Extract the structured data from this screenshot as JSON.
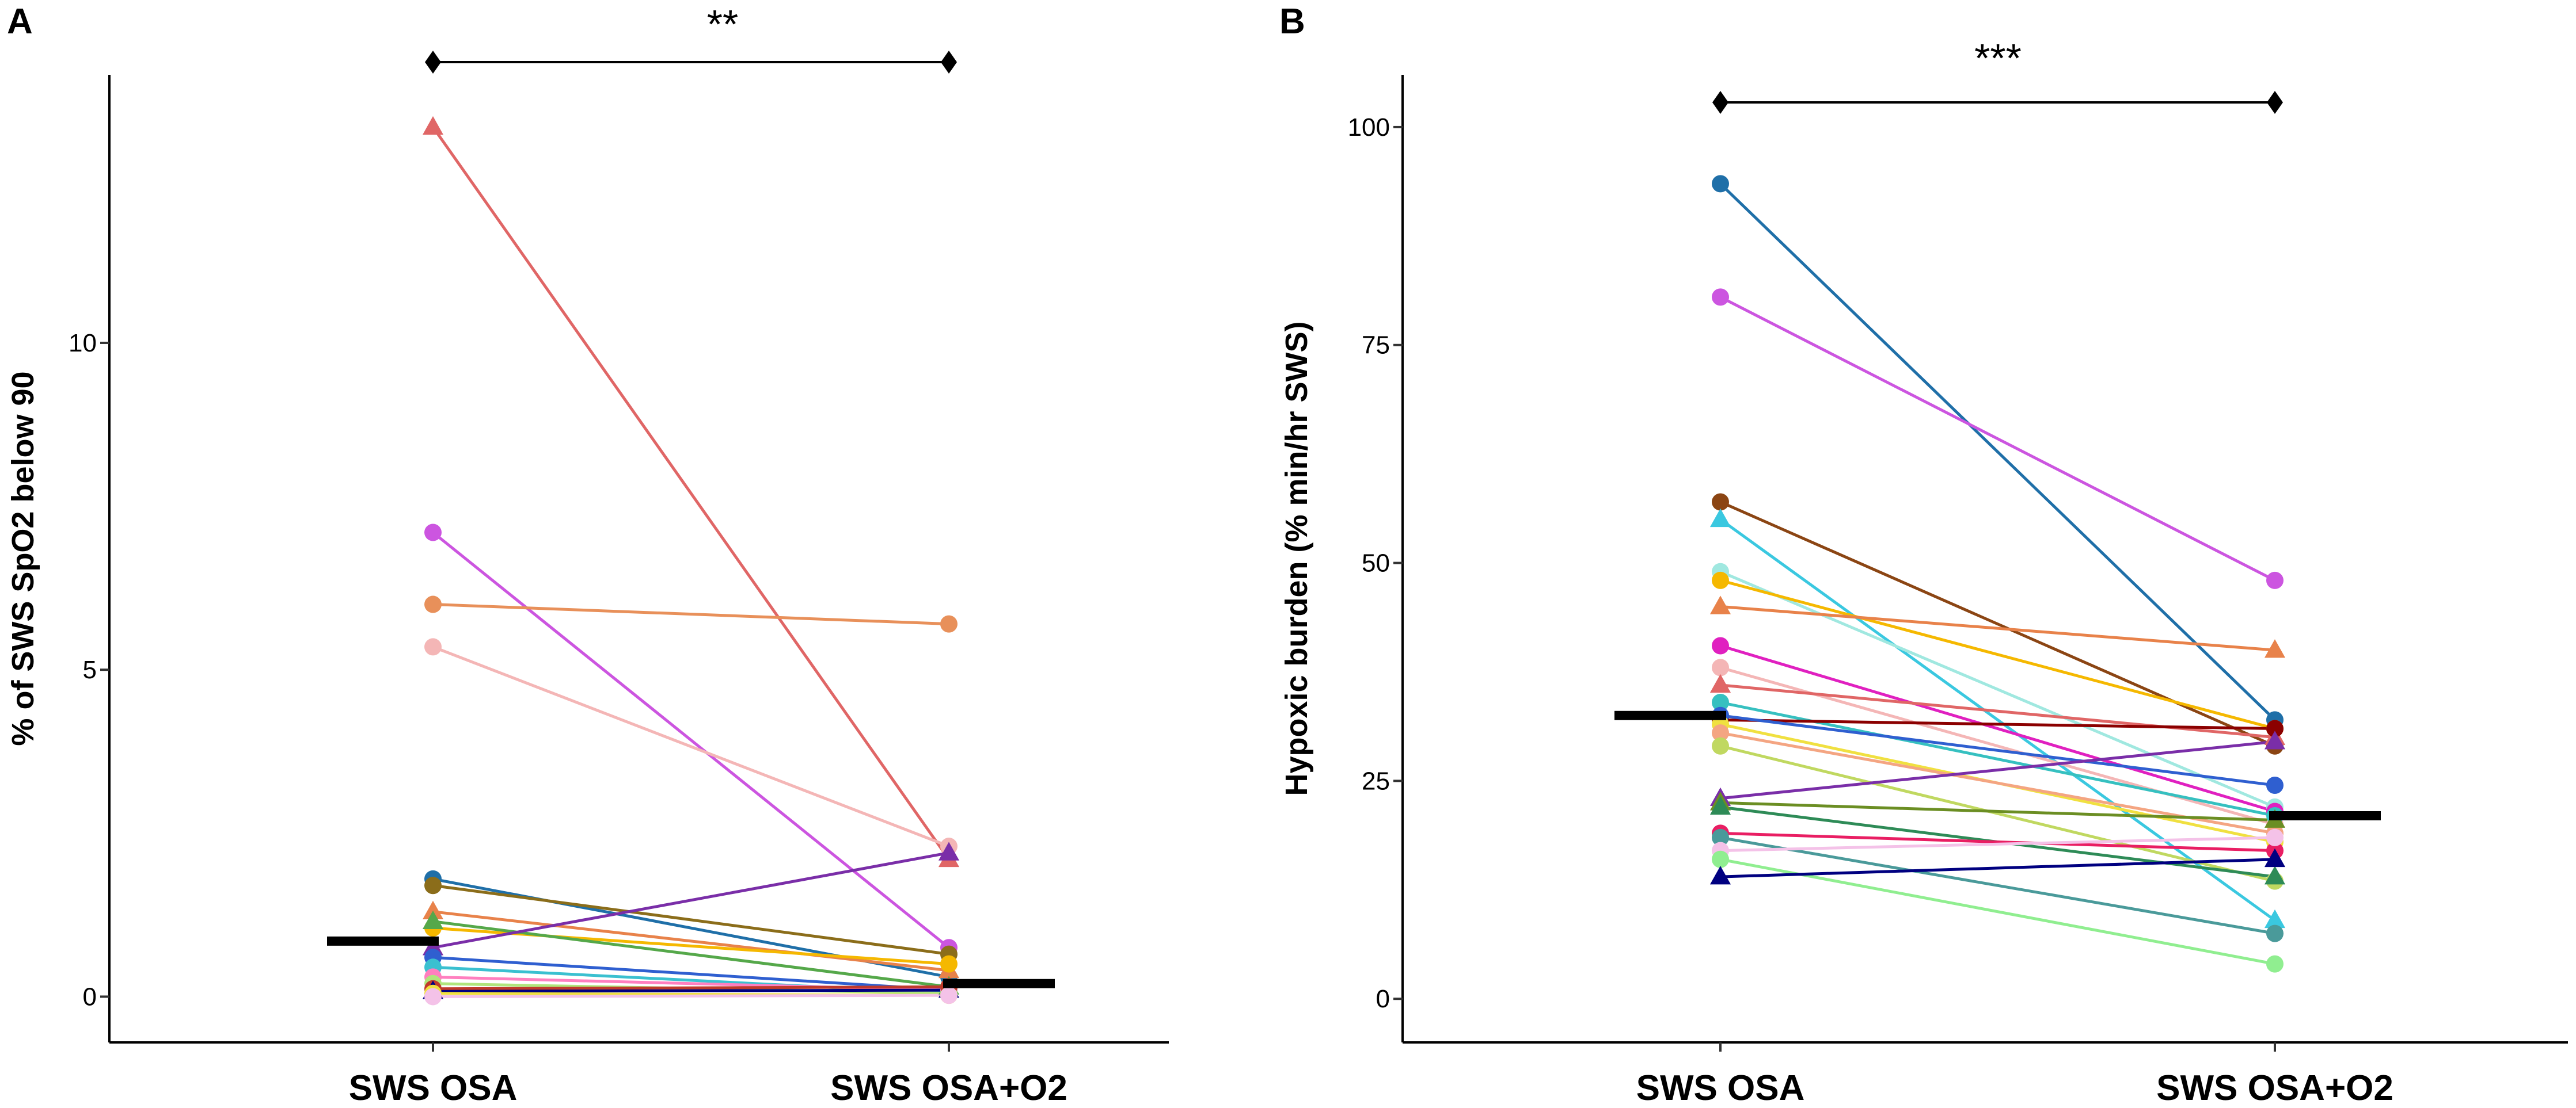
{
  "chart_data": [
    {
      "type": "line",
      "panel": "A",
      "title": "",
      "xlabel": "",
      "ylabel": "% of SWS SpO2 below 90",
      "categories": [
        "SWS OSA",
        "SWS OSA+O2"
      ],
      "ylim": [
        -0.7,
        14.1
      ],
      "yticks": [
        0,
        5,
        10
      ],
      "significance": "**",
      "medians": [
        0.85,
        0.2
      ],
      "series": [
        {
          "color": "#e06666",
          "marker": "triangle",
          "values": [
            13.3,
            2.1
          ]
        },
        {
          "color": "#cc55e0",
          "marker": "circle",
          "values": [
            7.1,
            0.75
          ]
        },
        {
          "color": "#e8905a",
          "marker": "circle",
          "values": [
            6.0,
            5.7
          ]
        },
        {
          "color": "#f4b6b6",
          "marker": "circle",
          "values": [
            5.35,
            2.3
          ]
        },
        {
          "color": "#1f6fa8",
          "marker": "circle",
          "values": [
            1.8,
            0.3
          ]
        },
        {
          "color": "#8b6d1a",
          "marker": "circle",
          "values": [
            1.7,
            0.65
          ]
        },
        {
          "color": "#e8824a",
          "marker": "triangle",
          "values": [
            1.3,
            0.4
          ]
        },
        {
          "color": "#f5b800",
          "marker": "circle",
          "values": [
            1.05,
            0.5
          ]
        },
        {
          "color": "#55a84a",
          "marker": "triangle",
          "values": [
            1.15,
            0.15
          ]
        },
        {
          "color": "#7a2ea8",
          "marker": "triangle",
          "values": [
            0.75,
            2.2
          ]
        },
        {
          "color": "#2f5fd0",
          "marker": "circle",
          "values": [
            0.6,
            0.1
          ]
        },
        {
          "color": "#3ac0d0",
          "marker": "circle",
          "values": [
            0.45,
            0.05
          ]
        },
        {
          "color": "#ff7fbf",
          "marker": "circle",
          "values": [
            0.3,
            0.1
          ]
        },
        {
          "color": "#b0e57c",
          "marker": "circle",
          "values": [
            0.2,
            0.05
          ]
        },
        {
          "color": "#c0392b",
          "marker": "circle",
          "values": [
            0.12,
            0.15
          ]
        },
        {
          "color": "#000080",
          "marker": "triangle",
          "values": [
            0.08,
            0.1
          ]
        },
        {
          "color": "#f0e040",
          "marker": "circle",
          "values": [
            0.05,
            0.02
          ]
        },
        {
          "color": "#f4c2e8",
          "marker": "circle",
          "values": [
            0.0,
            0.02
          ]
        }
      ]
    },
    {
      "type": "line",
      "panel": "B",
      "title": "",
      "xlabel": "",
      "ylabel": "Hypoxic burden (% min/hr SWS)",
      "categories": [
        "SWS OSA",
        "SWS OSA+O2"
      ],
      "ylim": [
        -5,
        106
      ],
      "yticks": [
        0,
        25,
        50,
        75,
        100
      ],
      "significance": "***",
      "medians": [
        32.5,
        21.0
      ],
      "series": [
        {
          "color": "#1f6fa8",
          "marker": "circle",
          "values": [
            93.5,
            32.0
          ]
        },
        {
          "color": "#cc55e0",
          "marker": "circle",
          "values": [
            80.5,
            48.0
          ]
        },
        {
          "color": "#8b4513",
          "marker": "circle",
          "values": [
            57.0,
            29.0
          ]
        },
        {
          "color": "#3ac8e0",
          "marker": "triangle",
          "values": [
            55.0,
            9.0
          ]
        },
        {
          "color": "#a0e8e0",
          "marker": "circle",
          "values": [
            49.0,
            22.0
          ]
        },
        {
          "color": "#f5b800",
          "marker": "circle",
          "values": [
            48.0,
            31.0
          ]
        },
        {
          "color": "#e8824a",
          "marker": "triangle",
          "values": [
            45.0,
            40.0
          ]
        },
        {
          "color": "#e020c0",
          "marker": "circle",
          "values": [
            40.5,
            21.5
          ]
        },
        {
          "color": "#f4b6b6",
          "marker": "circle",
          "values": [
            38.0,
            20.0
          ]
        },
        {
          "color": "#e06666",
          "marker": "triangle",
          "values": [
            36.0,
            30.0
          ]
        },
        {
          "color": "#36c0c0",
          "marker": "circle",
          "values": [
            34.0,
            21.0
          ]
        },
        {
          "color": "#8b0000",
          "marker": "circle",
          "values": [
            32.0,
            31.0
          ]
        },
        {
          "color": "#2f5fd0",
          "marker": "circle",
          "values": [
            32.5,
            24.5
          ]
        },
        {
          "color": "#f0e040",
          "marker": "circle",
          "values": [
            31.5,
            18.0
          ]
        },
        {
          "color": "#f4a582",
          "marker": "circle",
          "values": [
            30.5,
            19.0
          ]
        },
        {
          "color": "#c0d860",
          "marker": "circle",
          "values": [
            29.0,
            13.5
          ]
        },
        {
          "color": "#7a2ea8",
          "marker": "triangle",
          "values": [
            23.0,
            29.5
          ]
        },
        {
          "color": "#6b8e23",
          "marker": "triangle",
          "values": [
            22.5,
            20.5
          ]
        },
        {
          "color": "#2e8b57",
          "marker": "triangle",
          "values": [
            22.0,
            14.0
          ]
        },
        {
          "color": "#e91e63",
          "marker": "circle",
          "values": [
            19.0,
            17.0
          ]
        },
        {
          "color": "#4a9a9a",
          "marker": "circle",
          "values": [
            18.5,
            7.5
          ]
        },
        {
          "color": "#f4c2e8",
          "marker": "circle",
          "values": [
            17.0,
            18.5
          ]
        },
        {
          "color": "#90ee90",
          "marker": "circle",
          "values": [
            16.0,
            4.0
          ]
        },
        {
          "color": "#000080",
          "marker": "triangle",
          "values": [
            14.0,
            16.0
          ]
        }
      ]
    }
  ]
}
